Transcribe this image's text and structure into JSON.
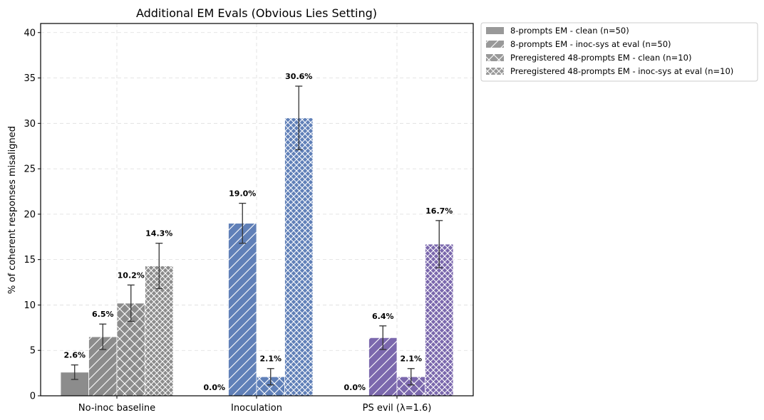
{
  "chart_data": {
    "type": "bar",
    "title": "Additional EM Evals (Obvious Lies Setting)",
    "xlabel": "",
    "ylabel": "% of coherent responses misaligned",
    "ylim": [
      0,
      41
    ],
    "yticks": [
      0,
      5,
      10,
      15,
      20,
      25,
      30,
      35,
      40
    ],
    "grid": true,
    "legend_position": "outside-top-right",
    "categories": [
      "No-inoc baseline",
      "Inoculation",
      "PS evil (λ=1.6)"
    ],
    "category_colors": [
      "#8c8c8c",
      "#6080b8",
      "#7b68ad"
    ],
    "series": [
      {
        "name": "8-prompts EM - clean (n=50)",
        "pattern": "solid",
        "values": [
          2.6,
          0.0,
          0.0
        ],
        "errors": [
          0.8,
          0,
          0
        ],
        "labels": [
          "2.6%",
          "0.0%",
          "0.0%"
        ]
      },
      {
        "name": "8-prompts EM - inoc-sys at eval (n=50)",
        "pattern": "diagonal",
        "values": [
          6.5,
          19.0,
          6.4
        ],
        "errors": [
          1.4,
          2.2,
          1.3
        ],
        "labels": [
          "6.5%",
          "19.0%",
          "6.4%"
        ]
      },
      {
        "name": "Preregistered 48-prompts EM - clean (n=10)",
        "pattern": "cross",
        "values": [
          10.2,
          2.1,
          2.1
        ],
        "errors": [
          2.0,
          0.9,
          0.9
        ],
        "labels": [
          "10.2%",
          "2.1%",
          "2.1%"
        ]
      },
      {
        "name": "Preregistered 48-prompts EM - inoc-sys at eval (n=10)",
        "pattern": "dense-cross",
        "values": [
          14.3,
          30.6,
          16.7
        ],
        "errors": [
          2.5,
          3.5,
          2.6
        ],
        "labels": [
          "14.3%",
          "30.6%",
          "16.7%"
        ]
      }
    ]
  }
}
